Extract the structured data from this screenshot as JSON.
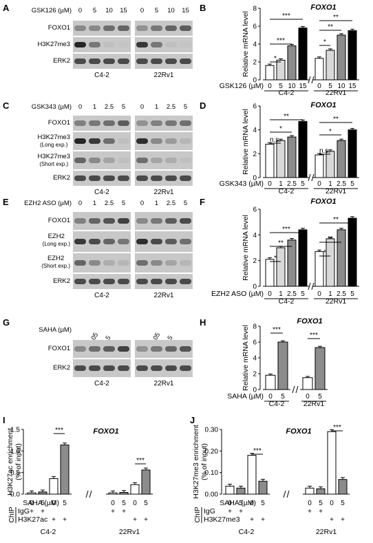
{
  "panels": {
    "A": {
      "letter": "A",
      "treatment": "GSK126 (µM)",
      "doses": [
        "0",
        "5",
        "10",
        "15"
      ],
      "rows": [
        {
          "label": "FOXO1"
        },
        {
          "label": "H3K27me3"
        },
        {
          "label": "ERK2"
        }
      ],
      "cells": [
        "C4-2",
        "22Rv1"
      ]
    },
    "C": {
      "letter": "C",
      "treatment": "GSK343 (µM)",
      "doses": [
        "0",
        "1",
        "2.5",
        "5"
      ],
      "rows": [
        {
          "label": "FOXO1"
        },
        {
          "label": "H3K27me3",
          "sub": "(Long exp.)"
        },
        {
          "label": "H3K27me3",
          "sub": "(Short exp.)"
        },
        {
          "label": "ERK2"
        }
      ],
      "cells": [
        "C4-2",
        "22Rv1"
      ]
    },
    "E": {
      "letter": "E",
      "treatment": "EZH2 ASO (µM)",
      "doses": [
        "0",
        "1",
        "2.5",
        "5"
      ],
      "rows": [
        {
          "label": "FOXO1"
        },
        {
          "label": "EZH2",
          "sub": "(Long exp.)"
        },
        {
          "label": "EZH2",
          "sub": "(Short exp.)"
        },
        {
          "label": "ERK2"
        }
      ],
      "cells": [
        "C4-2",
        "22Rv1"
      ]
    },
    "G": {
      "letter": "G",
      "treatment": "SAHA (µM)",
      "doses": [
        "0",
        "0.05",
        "0.5",
        "5"
      ],
      "rows": [
        {
          "label": "FOXO1"
        },
        {
          "label": "ERK2"
        }
      ],
      "cells": [
        "C4-2",
        "22Rv1"
      ]
    }
  },
  "chart_data": [
    {
      "panel": "B",
      "type": "bar",
      "title": "FOXO1",
      "ylabel": "Relative mRNA level",
      "ylim": [
        0,
        8
      ],
      "yticks": [
        "0",
        "2",
        "4",
        "6",
        "8"
      ],
      "xlabel": "GSK126 (µM)",
      "groups": [
        {
          "name": "C4-2",
          "doses": [
            "0",
            "5",
            "10",
            "15"
          ],
          "values": [
            1.6,
            2.2,
            3.8,
            5.8
          ]
        },
        {
          "name": "22Rv1",
          "doses": [
            "0",
            "5",
            "10",
            "15"
          ],
          "values": [
            2.4,
            3.3,
            5.0,
            5.5
          ]
        }
      ],
      "sig": [
        "*",
        "***",
        "***",
        "*",
        "**",
        "**"
      ]
    },
    {
      "panel": "D",
      "type": "bar",
      "title": "FOXO1",
      "ylabel": "Relative mRNA level",
      "ylim": [
        0,
        6
      ],
      "yticks": [
        "0",
        "2",
        "4",
        "6"
      ],
      "xlabel": "GSK343 (µM)",
      "groups": [
        {
          "name": "C4-2",
          "doses": [
            "0",
            "1",
            "2.5",
            "5"
          ],
          "values": [
            2.8,
            3.1,
            3.4,
            4.7
          ]
        },
        {
          "name": "22Rv1",
          "doses": [
            "0",
            "1",
            "2.5",
            "5"
          ],
          "values": [
            1.9,
            2.2,
            3.1,
            4.0
          ]
        }
      ],
      "sig": [
        "n.s.",
        "*",
        "**",
        "n.s.",
        "*",
        "**"
      ]
    },
    {
      "panel": "F",
      "type": "bar",
      "title": "FOXO1",
      "ylabel": "Relative mRNA level",
      "ylim": [
        0,
        6
      ],
      "yticks": [
        "0",
        "2",
        "4",
        "6"
      ],
      "xlabel": "EZH2 ASO (µM)",
      "groups": [
        {
          "name": "C4-2",
          "doses": [
            "0",
            "1",
            "2.5",
            "5"
          ],
          "values": [
            2.1,
            3.0,
            3.6,
            4.4
          ]
        },
        {
          "name": "22Rv1",
          "doses": [
            "0",
            "1",
            "2.5",
            "5"
          ],
          "values": [
            2.7,
            3.7,
            4.4,
            5.3
          ]
        }
      ],
      "sig": [
        "*",
        "**",
        "***",
        "*",
        "**",
        "**"
      ]
    },
    {
      "panel": "H",
      "type": "bar",
      "title": "FOXO1",
      "ylabel": "Relative mRNA level",
      "ylim": [
        0,
        8
      ],
      "yticks": [
        "0",
        "2",
        "4",
        "6",
        "8"
      ],
      "xlabel": "SAHA (µM)",
      "groups": [
        {
          "name": "C4-2",
          "doses": [
            "0",
            "5"
          ],
          "values": [
            1.8,
            6.0
          ]
        },
        {
          "name": "22Rv1",
          "doses": [
            "0",
            "5"
          ],
          "values": [
            1.5,
            5.3
          ]
        }
      ],
      "sig": [
        "***",
        "***"
      ]
    },
    {
      "panel": "I",
      "type": "bar",
      "title": "FOXO1",
      "ylabel": "H3K27ac enrichment",
      "ylabel2": "(% of input)",
      "ylim": [
        0,
        1.5
      ],
      "yticks": [
        "0.0",
        "0.5",
        "1.0",
        "1.5"
      ],
      "xlabel": "SAHA (µM)",
      "row2": "IgG",
      "row3": "H3K27ac",
      "chip": "ChIP",
      "groups": [
        {
          "name": "C4-2",
          "doses": [
            "0",
            "5",
            "0",
            "5"
          ],
          "values": [
            0.03,
            0.05,
            0.36,
            1.14
          ]
        },
        {
          "name": "22Rv1",
          "doses": [
            "0",
            "5",
            "0",
            "5"
          ],
          "values": [
            0.03,
            0.04,
            0.22,
            0.56
          ]
        }
      ],
      "sig": [
        "***",
        "***"
      ]
    },
    {
      "panel": "J",
      "type": "bar",
      "title": "FOXO1",
      "ylabel": "H3K27me3 enrichment",
      "ylabel2": "(% of input)",
      "ylim": [
        0,
        0.3
      ],
      "yticks": [
        "0.00",
        "0.10",
        "0.20",
        "0.30"
      ],
      "xlabel": "SAHA (µM)",
      "row2": "IgG",
      "row3": "H3K27me3",
      "chip": "ChIP",
      "groups": [
        {
          "name": "C4-2",
          "doses": [
            "0",
            "5",
            "0",
            "5"
          ],
          "values": [
            0.037,
            0.028,
            0.18,
            0.06
          ]
        },
        {
          "name": "22Rv1",
          "doses": [
            "0",
            "5",
            "0",
            "5"
          ],
          "values": [
            0.028,
            0.025,
            0.29,
            0.068
          ]
        }
      ],
      "sig": [
        "***",
        "***"
      ]
    }
  ],
  "marks": {
    "plus": "+"
  }
}
